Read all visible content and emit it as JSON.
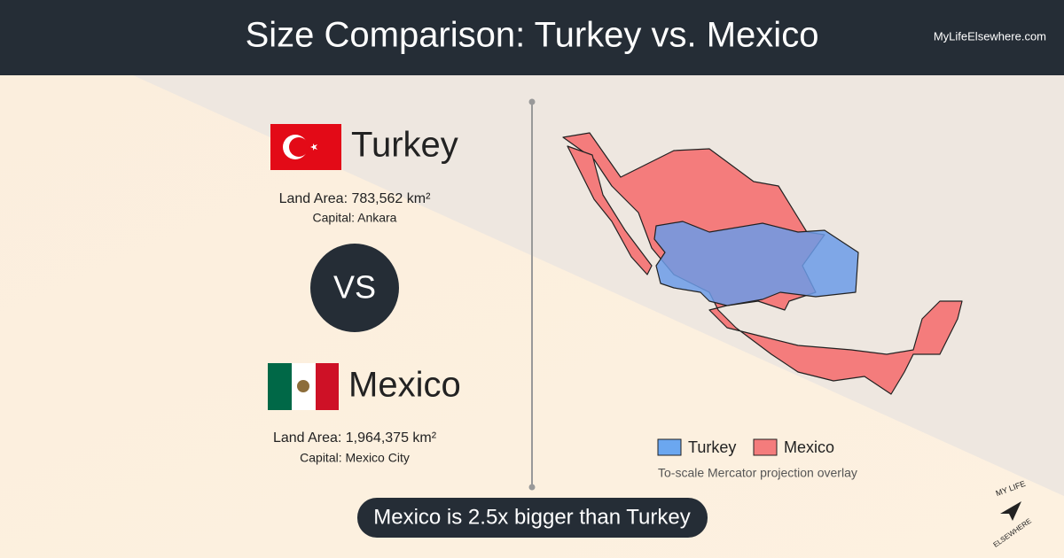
{
  "header": {
    "title": "Size Comparison: Turkey vs. Mexico",
    "site": "MyLifeElsewhere.com"
  },
  "country_a": {
    "name": "Turkey",
    "land_area": "Land Area: 783,562 km²",
    "capital": "Capital: Ankara"
  },
  "versus": "VS",
  "country_b": {
    "name": "Mexico",
    "land_area": "Land Area: 1,964,375 km²",
    "capital": "Capital: Mexico City"
  },
  "legend": {
    "items": [
      "Turkey",
      "Mexico"
    ],
    "note": "To-scale Mercator projection overlay"
  },
  "summary": "Mexico is 2.5x bigger than Turkey",
  "logo": {
    "line1": "MY LIFE",
    "line2": "ELSEWHERE"
  }
}
